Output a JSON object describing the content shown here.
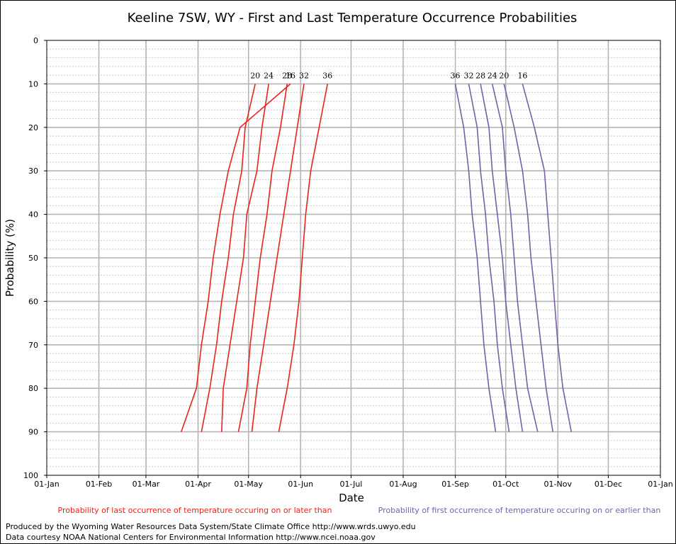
{
  "chart_data": {
    "type": "line",
    "title": "Keeline 7SW, WY - First and Last Temperature Occurrence Probabilities",
    "xlabel": "Date",
    "ylabel": "Probability (%)",
    "x_ticks": [
      "01-Jan",
      "01-Feb",
      "01-Mar",
      "01-Apr",
      "01-May",
      "01-Jun",
      "01-Jul",
      "01-Aug",
      "01-Sep",
      "01-Oct",
      "01-Nov",
      "01-Dec",
      "01-Jan"
    ],
    "y_ticks": [
      "0",
      "10",
      "20",
      "30",
      "40",
      "50",
      "60",
      "70",
      "80",
      "90",
      "100"
    ],
    "ylim": [
      0,
      100
    ],
    "y_inverted": true,
    "grid": true,
    "probabilities": [
      10,
      20,
      30,
      40,
      50,
      60,
      70,
      80,
      90
    ],
    "colors": {
      "last": "#e8241a",
      "first": "#7a5ea8"
    },
    "series": [
      {
        "group": "last",
        "label": "16",
        "dates": [
          "May-26",
          "Apr-26",
          "Apr-19",
          "Apr-14",
          "Apr-10",
          "Apr-07",
          "Apr-03",
          "Mar-31",
          "Mar-22"
        ]
      },
      {
        "group": "last",
        "label": "20",
        "dates": [
          "May-05",
          "Apr-29",
          "Apr-27",
          "Apr-22",
          "Apr-19",
          "Apr-15",
          "Apr-12",
          "Apr-08",
          "Apr-03"
        ]
      },
      {
        "group": "last",
        "label": "24",
        "dates": [
          "May-13",
          "May-09",
          "May-06",
          "Apr-30",
          "Apr-28",
          "Apr-24",
          "Apr-20",
          "Apr-16",
          "Apr-15"
        ]
      },
      {
        "group": "last",
        "label": "28",
        "dates": [
          "May-24",
          "May-20",
          "May-15",
          "May-12",
          "May-08",
          "May-05",
          "May-02",
          "Apr-30",
          "Apr-25"
        ]
      },
      {
        "group": "last",
        "label": "32",
        "dates": [
          "Jun-03",
          "May-30",
          "May-26",
          "May-22",
          "May-18",
          "May-14",
          "May-10",
          "May-06",
          "May-03"
        ]
      },
      {
        "group": "last",
        "label": "36",
        "dates": [
          "Jun-17",
          "Jun-12",
          "Jun-07",
          "Jun-04",
          "Jun-02",
          "May-31",
          "May-28",
          "May-24",
          "May-19"
        ]
      },
      {
        "group": "first",
        "label": "36",
        "dates": [
          "Sep-01",
          "Sep-06",
          "Sep-09",
          "Sep-11",
          "Sep-14",
          "Sep-16",
          "Sep-18",
          "Sep-21",
          "Sep-25"
        ]
      },
      {
        "group": "first",
        "label": "32",
        "dates": [
          "Sep-09",
          "Sep-14",
          "Sep-16",
          "Sep-19",
          "Sep-21",
          "Sep-24",
          "Sep-26",
          "Sep-29",
          "Oct-03"
        ]
      },
      {
        "group": "first",
        "label": "28",
        "dates": [
          "Sep-16",
          "Sep-21",
          "Sep-23",
          "Sep-26",
          "Sep-29",
          "Oct-01",
          "Oct-04",
          "Oct-07",
          "Oct-11"
        ]
      },
      {
        "group": "first",
        "label": "24",
        "dates": [
          "Sep-23",
          "Sep-29",
          "Oct-01",
          "Oct-04",
          "Oct-06",
          "Oct-08",
          "Oct-11",
          "Oct-14",
          "Oct-20"
        ]
      },
      {
        "group": "first",
        "label": "20",
        "dates": [
          "Sep-30",
          "Oct-06",
          "Oct-11",
          "Oct-14",
          "Oct-16",
          "Oct-19",
          "Oct-22",
          "Oct-25",
          "Oct-29"
        ]
      },
      {
        "group": "first",
        "label": "16",
        "dates": [
          "Oct-11",
          "Oct-18",
          "Oct-24",
          "Oct-26",
          "Oct-28",
          "Oct-30",
          "Nov-01",
          "Nov-04",
          "Nov-09"
        ]
      }
    ],
    "legend": {
      "last": "Probability of last occurrence of temperature occuring on or later than",
      "first": "Probability of first occurrence of temperature occuring on or earlier than"
    }
  },
  "footer": {
    "line1": "Produced by the Wyoming Water Resources Data System/State Climate Office http://www.wrds.uwyo.edu",
    "line2": "Data courtesy NOAA National Centers for Environmental Information http://www.ncei.noaa.gov"
  }
}
